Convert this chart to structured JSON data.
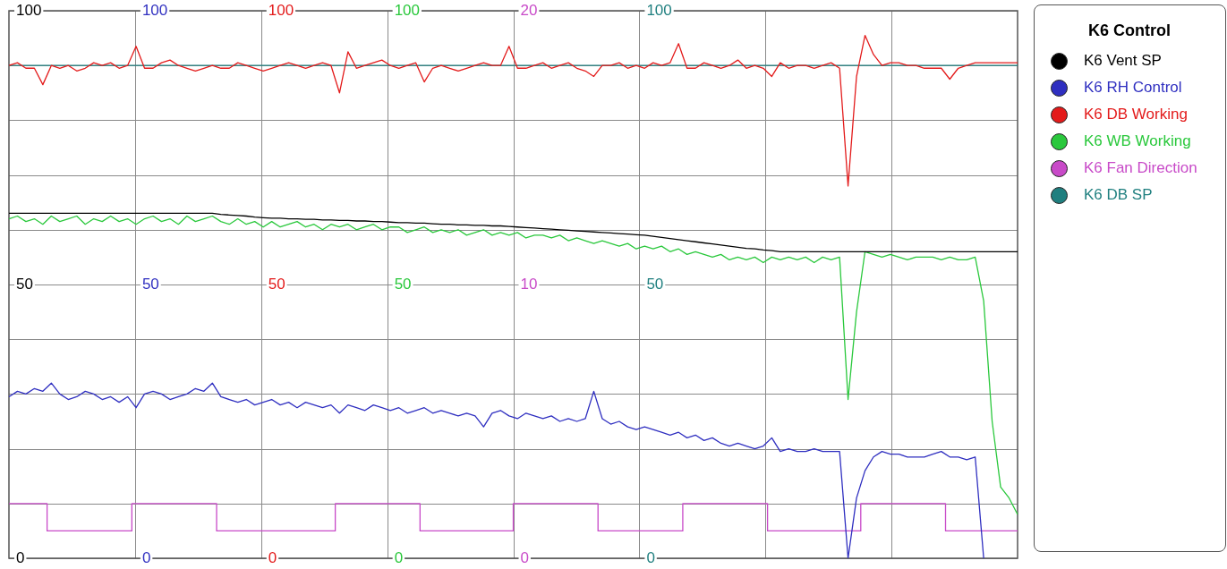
{
  "chart_data": {
    "type": "line",
    "legend_title": "K6 Control",
    "legend": "right",
    "grid": true,
    "marker": "none",
    "tick_labels": "y",
    "categories": [
      null,
      null,
      null,
      null,
      null,
      null,
      null,
      null,
      null,
      null,
      null,
      null,
      null,
      null,
      null,
      null,
      null,
      null,
      null,
      null,
      null,
      null,
      null,
      null,
      null,
      null,
      null,
      null,
      null,
      null,
      null,
      null,
      null,
      null,
      null,
      null,
      null,
      null,
      null,
      null,
      null,
      null,
      null,
      null,
      null,
      null,
      null,
      null,
      null,
      null,
      null,
      null,
      null,
      null,
      null,
      null,
      null,
      null,
      null,
      null,
      null,
      null,
      null,
      null,
      null,
      null,
      null,
      null,
      null,
      null,
      null,
      null,
      null,
      null,
      null,
      null,
      null,
      null,
      null,
      null,
      null,
      null,
      null,
      null,
      null,
      null,
      null,
      null,
      null,
      null,
      null,
      null,
      null,
      null,
      null,
      null,
      null,
      null,
      null,
      null,
      null,
      null,
      null,
      null,
      null,
      null,
      null,
      null,
      null,
      null,
      null,
      null,
      null,
      null,
      null,
      null,
      null,
      null,
      null,
      null
    ],
    "ylim": [
      0,
      100
    ],
    "yticks": [
      0,
      {
        "value": 10,
        "label": null
      },
      {
        "value": 20,
        "label": null
      },
      {
        "value": 30,
        "label": null
      },
      {
        "value": 40,
        "label": null
      },
      50,
      {
        "value": 60,
        "label": null
      },
      {
        "value": 70,
        "label": null
      },
      {
        "value": 80,
        "label": null
      },
      {
        "value": 90,
        "label": null
      },
      100
    ],
    "y2lim": [
      0,
      100
    ],
    "y2ticks": [
      0,
      50,
      100
    ],
    "y3lim": [
      0,
      20
    ],
    "y3ticks": [
      0,
      10,
      20
    ],
    "annotations": [
      {
        "text": "100",
        "y": 100
      },
      {
        "text": "50",
        "y": 50
      },
      {
        "text": "0",
        "y": 0
      },
      {
        "text": "100",
        "y": 100
      },
      {
        "text": "50",
        "y": 50
      },
      {
        "text": "0",
        "y": 0
      },
      {
        "text": "100",
        "y": 100
      },
      {
        "text": "50",
        "y": 50
      },
      {
        "text": "0",
        "y": 0
      }
    ],
    "series": [
      {
        "name": "K6 Vent SP",
        "color": "#000000",
        "axis": "y",
        "values": [
          63,
          63,
          63,
          63,
          63,
          63,
          63,
          63,
          63,
          63,
          63,
          63,
          63,
          63,
          63,
          63,
          63,
          63,
          63,
          63,
          63,
          63,
          63,
          63,
          63,
          62.8,
          62.7,
          62.6,
          62.5,
          62.3,
          62.2,
          62.1,
          62.1,
          62,
          62,
          61.9,
          61.9,
          61.8,
          61.8,
          61.7,
          61.7,
          61.6,
          61.6,
          61.5,
          61.5,
          61.4,
          61.3,
          61.3,
          61.2,
          61.2,
          61.1,
          61,
          61,
          60.9,
          60.9,
          60.8,
          60.8,
          60.7,
          60.7,
          60.6,
          60.5,
          60.4,
          60.3,
          60.2,
          60.1,
          60,
          59.9,
          59.8,
          59.7,
          59.6,
          59.5,
          59.4,
          59.3,
          59.2,
          59.1,
          59,
          58.8,
          58.6,
          58.4,
          58.2,
          58,
          57.8,
          57.6,
          57.4,
          57.2,
          57,
          56.8,
          56.6,
          56.5,
          56.3,
          56.2,
          56,
          56,
          56,
          56,
          56,
          56,
          56,
          56,
          56,
          56,
          56,
          56,
          56,
          56,
          56,
          56,
          56,
          56,
          56,
          56,
          56,
          56,
          56,
          56,
          56,
          56,
          56,
          56,
          56
        ]
      },
      {
        "name": "K6 RH Control",
        "color": "#2f2fc0",
        "axis": "y2",
        "values": [
          29.5,
          30.5,
          30,
          31,
          30.5,
          32,
          30,
          29,
          29.5,
          30.5,
          30,
          29,
          29.5,
          28.5,
          29.5,
          27.5,
          30,
          30.5,
          30,
          29,
          29.5,
          30,
          31,
          30.5,
          32,
          29.5,
          29,
          28.5,
          29,
          28,
          28.5,
          29,
          28,
          28.5,
          27.5,
          28.5,
          28,
          27.5,
          28,
          26.5,
          28,
          27.5,
          27,
          28,
          27.5,
          27,
          27.5,
          26.5,
          27,
          27.5,
          26.5,
          27,
          26.5,
          26,
          26.5,
          26,
          24,
          26.5,
          27,
          26,
          25.5,
          26.5,
          26,
          25.5,
          26,
          25,
          25.5,
          25,
          25.5,
          30.5,
          25.5,
          24.5,
          25,
          24,
          23.5,
          24,
          23.5,
          23,
          22.5,
          23,
          22,
          22.5,
          21.5,
          22,
          21,
          20.5,
          21,
          20.5,
          20,
          20.5,
          22,
          19.5,
          20,
          19.5,
          19.5,
          20,
          19.5,
          19.5,
          19.5,
          0,
          11,
          16,
          18.5,
          19.5,
          19,
          19,
          18.5,
          18.5,
          18.5,
          19,
          19.5,
          18.5,
          18.5,
          18,
          18.5,
          0,
          null,
          null,
          null,
          null
        ]
      },
      {
        "name": "K6 DB Working",
        "color": "#e31b1b",
        "axis": "y",
        "values": [
          90,
          90.5,
          89.5,
          89.5,
          86.5,
          90,
          89.5,
          90,
          89,
          89.5,
          90.5,
          90,
          90.5,
          89.5,
          90,
          93.5,
          89.5,
          89.5,
          90.5,
          91,
          90,
          89.5,
          89,
          89.5,
          90,
          89.5,
          89.5,
          90.5,
          90,
          89.5,
          89,
          89.5,
          90,
          90.5,
          90,
          89.5,
          90,
          90.5,
          90,
          85,
          92.5,
          89.5,
          90,
          90.5,
          91,
          90,
          89.5,
          90,
          90.5,
          87,
          89.5,
          90,
          89.5,
          89,
          89.5,
          90,
          90.5,
          90,
          90,
          93.5,
          89.5,
          89.5,
          90,
          90.5,
          89.5,
          90,
          90.5,
          89.5,
          89,
          88,
          90,
          90,
          90.5,
          89.5,
          90,
          89.5,
          90.5,
          90,
          90.5,
          94,
          89.5,
          89.5,
          90.5,
          90,
          89.5,
          90,
          91,
          89.5,
          90,
          89.5,
          88,
          90.5,
          89.5,
          90,
          90,
          89.5,
          90,
          90.5,
          89.5,
          68,
          88,
          95.5,
          92,
          90,
          90.5,
          90.5,
          90,
          90,
          89.5,
          89.5,
          89.5,
          87.5,
          89.5,
          90,
          90.5,
          90.5,
          90.5,
          90.5,
          90.5,
          90.5
        ]
      },
      {
        "name": "K6 WB Working",
        "color": "#2ac83c",
        "axis": "y",
        "values": [
          62,
          62.5,
          61.5,
          62,
          61,
          62.5,
          61.5,
          62,
          62.5,
          61,
          62,
          61.5,
          62.5,
          61.5,
          62,
          61,
          62,
          62.5,
          61.5,
          62,
          61,
          62.5,
          61.5,
          62,
          62.5,
          61.5,
          61,
          62,
          61,
          61.5,
          60.5,
          61.5,
          60.5,
          61,
          61.5,
          60.5,
          61,
          60,
          61,
          60.5,
          61,
          60,
          60.5,
          61,
          60,
          60.5,
          60.5,
          59.5,
          60,
          60.5,
          59.5,
          60,
          59.5,
          60,
          59,
          59.5,
          60,
          59,
          59.5,
          59,
          59.5,
          58.5,
          59,
          59,
          58.5,
          59,
          58,
          58.5,
          58,
          57.5,
          58,
          57.5,
          57,
          57.5,
          56.5,
          57,
          56.5,
          57,
          56,
          56.5,
          55.5,
          56,
          55.5,
          55,
          55.5,
          54.5,
          55,
          54.5,
          55,
          54,
          55,
          54.5,
          55,
          54.5,
          55,
          54,
          55,
          54.5,
          55,
          29,
          45,
          56,
          55.5,
          55,
          55.5,
          55,
          54.5,
          55,
          55,
          55,
          54.5,
          55,
          54.5,
          54.5,
          55,
          47,
          25,
          13,
          11,
          8
        ]
      },
      {
        "name": "K6 Fan Direction",
        "color": "#c84ac8",
        "axis": "y3",
        "type": "step",
        "values": [
          2,
          2,
          2,
          2,
          2,
          1,
          1,
          1,
          1,
          1,
          1,
          1,
          1,
          1,
          1,
          2,
          2,
          2,
          2,
          2,
          2,
          2,
          2,
          2,
          2,
          1,
          1,
          1,
          1,
          1,
          1,
          1,
          1,
          1,
          1,
          1,
          1,
          1,
          1,
          2,
          2,
          2,
          2,
          2,
          2,
          2,
          2,
          2,
          2,
          1,
          1,
          1,
          1,
          1,
          1,
          1,
          1,
          1,
          1,
          1,
          2,
          2,
          2,
          2,
          2,
          2,
          2,
          2,
          2,
          2,
          1,
          1,
          1,
          1,
          1,
          1,
          1,
          1,
          1,
          1,
          2,
          2,
          2,
          2,
          2,
          2,
          2,
          2,
          2,
          2,
          1,
          1,
          1,
          1,
          1,
          1,
          1,
          1,
          1,
          1,
          1,
          2,
          2,
          2,
          2,
          2,
          2,
          2,
          2,
          2,
          2,
          1,
          1,
          1,
          1,
          1,
          1,
          1,
          1,
          1
        ]
      },
      {
        "name": "K6 DB SP",
        "color": "#1f7f7f",
        "axis": "y",
        "values": [
          90,
          90,
          90,
          90,
          90,
          90,
          90,
          90,
          90,
          90,
          90,
          90,
          90,
          90,
          90,
          90,
          90,
          90,
          90,
          90,
          90,
          90,
          90,
          90,
          90,
          90,
          90,
          90,
          90,
          90,
          90,
          90,
          90,
          90,
          90,
          90,
          90,
          90,
          90,
          90,
          90,
          90,
          90,
          90,
          90,
          90,
          90,
          90,
          90,
          90,
          90,
          90,
          90,
          90,
          90,
          90,
          90,
          90,
          90,
          90,
          90,
          90,
          90,
          90,
          90,
          90,
          90,
          90,
          90,
          90,
          90,
          90,
          90,
          90,
          90,
          90,
          90,
          90,
          90,
          90,
          90,
          90,
          90,
          90,
          90,
          90,
          90,
          90,
          90,
          90,
          90,
          90,
          90,
          90,
          90,
          90,
          90,
          90,
          90,
          90,
          90,
          90,
          90,
          90,
          90,
          90,
          90,
          90,
          90,
          90,
          90,
          90,
          90,
          90,
          90,
          90,
          90,
          90,
          90,
          90
        ]
      }
    ]
  }
}
